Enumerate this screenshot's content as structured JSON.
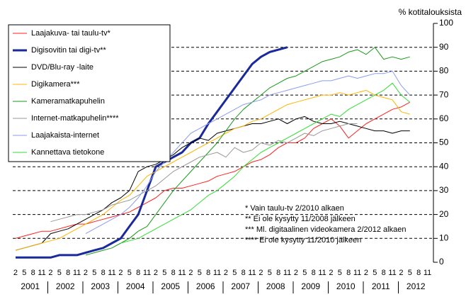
{
  "chart_data": {
    "type": "line",
    "y_axis_title": "% kotitalouksista",
    "x": [
      2001.08,
      2001.33,
      2001.58,
      2001.83,
      2002.08,
      2002.33,
      2002.58,
      2002.83,
      2003.08,
      2003.33,
      2003.58,
      2003.83,
      2004.08,
      2004.33,
      2004.58,
      2004.83,
      2005.08,
      2005.33,
      2005.58,
      2005.83,
      2006.08,
      2006.33,
      2006.58,
      2006.83,
      2007.08,
      2007.33,
      2007.58,
      2007.83,
      2008.08,
      2008.33,
      2008.58,
      2008.83,
      2009.08,
      2009.33,
      2009.58,
      2009.83,
      2010.08,
      2010.33,
      2010.58,
      2010.83,
      2011.08,
      2011.33,
      2011.58,
      2011.83,
      2012.08,
      2012.33
    ],
    "xlim": [
      2001,
      2013
    ],
    "xticks": [
      {
        "value": 2001.08,
        "label": "2"
      },
      {
        "value": 2001.33,
        "label": "5"
      },
      {
        "value": 2001.58,
        "label": "8"
      },
      {
        "value": 2001.83,
        "label": "11"
      },
      {
        "value": 2002.08,
        "label": "2"
      },
      {
        "value": 2002.33,
        "label": "5"
      },
      {
        "value": 2002.58,
        "label": "8"
      },
      {
        "value": 2002.83,
        "label": "11"
      },
      {
        "value": 2003.08,
        "label": "2"
      },
      {
        "value": 2003.33,
        "label": "5"
      },
      {
        "value": 2003.58,
        "label": "8"
      },
      {
        "value": 2003.83,
        "label": "11"
      },
      {
        "value": 2004.08,
        "label": "2"
      },
      {
        "value": 2004.33,
        "label": "5"
      },
      {
        "value": 2004.58,
        "label": "8"
      },
      {
        "value": 2004.83,
        "label": "11"
      },
      {
        "value": 2005.08,
        "label": "2"
      },
      {
        "value": 2005.33,
        "label": "5"
      },
      {
        "value": 2005.58,
        "label": "8"
      },
      {
        "value": 2005.83,
        "label": "11"
      },
      {
        "value": 2006.08,
        "label": "2"
      },
      {
        "value": 2006.33,
        "label": "5"
      },
      {
        "value": 2006.58,
        "label": "8"
      },
      {
        "value": 2006.83,
        "label": "11"
      },
      {
        "value": 2007.08,
        "label": "2"
      },
      {
        "value": 2007.33,
        "label": "5"
      },
      {
        "value": 2007.58,
        "label": "8"
      },
      {
        "value": 2007.83,
        "label": "11"
      },
      {
        "value": 2008.08,
        "label": "2"
      },
      {
        "value": 2008.33,
        "label": "5"
      },
      {
        "value": 2008.58,
        "label": "8"
      },
      {
        "value": 2008.83,
        "label": "11"
      },
      {
        "value": 2009.08,
        "label": "2"
      },
      {
        "value": 2009.33,
        "label": "5"
      },
      {
        "value": 2009.58,
        "label": "8"
      },
      {
        "value": 2009.83,
        "label": "11"
      },
      {
        "value": 2010.08,
        "label": "2"
      },
      {
        "value": 2010.33,
        "label": "5"
      },
      {
        "value": 2010.58,
        "label": "8"
      },
      {
        "value": 2010.83,
        "label": "11"
      },
      {
        "value": 2011.08,
        "label": "2"
      },
      {
        "value": 2011.33,
        "label": "5"
      },
      {
        "value": 2011.58,
        "label": "8"
      },
      {
        "value": 2011.83,
        "label": "11"
      },
      {
        "value": 2012.08,
        "label": "2"
      },
      {
        "value": 2012.33,
        "label": "5"
      },
      {
        "value": 2012.58,
        "label": "8"
      },
      {
        "value": 2012.83,
        "label": "11"
      }
    ],
    "x_years": [
      "2001",
      "2002",
      "2003",
      "2004",
      "2005",
      "2006",
      "2007",
      "2008",
      "2009",
      "2010",
      "2011",
      "2012"
    ],
    "ylim": [
      0,
      100
    ],
    "yticks": [
      0,
      10,
      20,
      30,
      40,
      50,
      60,
      70,
      80,
      90,
      100
    ],
    "grid": true,
    "series": [
      {
        "name": "Laajakuva- tai taulu-tv*",
        "color": "#ff2020",
        "width": 1,
        "values": [
          10,
          11,
          12,
          13,
          13,
          14,
          15,
          16,
          16,
          17,
          18,
          19,
          20,
          21,
          23,
          25,
          27,
          30,
          31,
          31,
          32,
          33,
          34,
          36,
          37,
          38,
          40,
          42,
          43,
          45,
          48,
          50,
          50,
          52,
          56,
          58,
          60,
          57,
          52,
          55,
          58,
          60,
          62,
          64,
          65,
          67
        ]
      },
      {
        "name": "Digisovitin tai digi-tv**",
        "color": "#1a2a9a",
        "width": 3,
        "values": [
          2,
          2,
          2,
          2,
          2,
          3,
          3,
          3,
          4,
          5,
          6,
          8,
          10,
          15,
          20,
          30,
          40,
          42,
          44,
          46,
          50,
          52,
          58,
          63,
          68,
          73,
          78,
          83,
          86,
          88,
          89,
          90,
          null,
          null,
          null,
          null,
          null,
          null,
          null,
          null,
          null,
          null,
          null,
          null,
          null,
          null
        ]
      },
      {
        "name": "DVD/Blu-ray -laite",
        "color": "#000000",
        "width": 1,
        "values": [
          5,
          6,
          7,
          8,
          12,
          13,
          14,
          16,
          18,
          20,
          22,
          25,
          27,
          30,
          38,
          40,
          41,
          43,
          45,
          48,
          50,
          52,
          51,
          54,
          55,
          56,
          57,
          58,
          58,
          59,
          60,
          58,
          60,
          61,
          59,
          58,
          58,
          59,
          58,
          57,
          56,
          55,
          55,
          54,
          55,
          55
        ]
      },
      {
        "name": "Digikamera***",
        "color": "#ffb400",
        "width": 1,
        "values": [
          5,
          6,
          7,
          8,
          9,
          10,
          12,
          14,
          16,
          18,
          20,
          23,
          26,
          28,
          32,
          36,
          38,
          40,
          42,
          44,
          46,
          48,
          50,
          52,
          54,
          56,
          57,
          59,
          60,
          62,
          64,
          66,
          67,
          68,
          69,
          70,
          70,
          71,
          70,
          71,
          72,
          70,
          69,
          68,
          63,
          62
        ]
      },
      {
        "name": "Kameramatkapuhelin",
        "color": "#1a9a1a",
        "width": 1,
        "values": [
          null,
          null,
          null,
          null,
          null,
          null,
          null,
          null,
          3,
          4,
          5,
          6,
          8,
          10,
          13,
          15,
          20,
          25,
          30,
          34,
          38,
          42,
          46,
          50,
          55,
          60,
          64,
          67,
          70,
          73,
          75,
          77,
          78,
          80,
          82,
          84,
          85,
          86,
          88,
          89,
          87,
          90,
          85,
          86,
          85,
          86
        ]
      },
      {
        "name": "Internet-matkapuhelin****",
        "color": "#999999",
        "width": 1,
        "values": [
          null,
          null,
          null,
          null,
          17,
          18,
          19,
          20,
          20,
          21,
          22,
          24,
          25,
          26,
          28,
          30,
          32,
          35,
          38,
          40,
          42,
          44,
          45,
          46,
          44,
          48,
          46,
          47,
          50,
          49,
          51,
          50,
          52,
          54,
          53,
          55,
          56,
          57,
          58,
          58,
          null,
          null,
          null,
          null,
          null,
          null
        ]
      },
      {
        "name": "Laajakaista-internet",
        "color": "#8c9cf0",
        "width": 1,
        "values": [
          null,
          null,
          null,
          null,
          null,
          null,
          null,
          null,
          12,
          14,
          16,
          18,
          20,
          23,
          27,
          32,
          38,
          42,
          46,
          50,
          54,
          56,
          58,
          60,
          62,
          64,
          66,
          67,
          68,
          70,
          71,
          72,
          73,
          74,
          75,
          76,
          76,
          77,
          78,
          77,
          78,
          79,
          79,
          80,
          74,
          70
        ]
      },
      {
        "name": "Kannettava tietokone",
        "color": "#33dd33",
        "width": 1,
        "values": [
          null,
          null,
          null,
          null,
          null,
          null,
          null,
          null,
          null,
          null,
          null,
          null,
          8,
          9,
          10,
          12,
          14,
          16,
          18,
          20,
          22,
          25,
          28,
          30,
          33,
          36,
          40,
          43,
          46,
          48,
          50,
          52,
          54,
          56,
          58,
          60,
          62,
          61,
          64,
          66,
          68,
          70,
          72,
          75,
          70,
          67
        ]
      }
    ],
    "notes": [
      "* Vain taulu-tv 2/2010 alkaen",
      "** Ei ole kysytty 11/2008 jälkeen",
      "*** Ml. digitaalinen videokamera 2/2012 alkaen",
      "**** Ei ole kysytty 11/2010 jälkeen"
    ]
  }
}
